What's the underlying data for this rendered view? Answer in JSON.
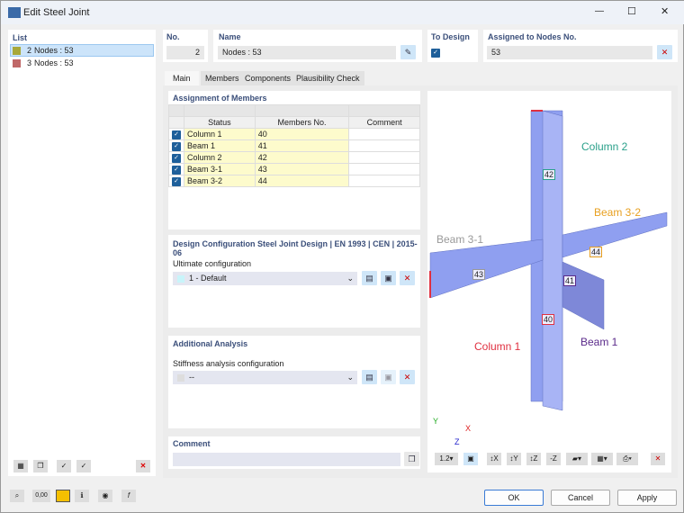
{
  "window": {
    "title": "Edit Steel Joint",
    "minimize": "—",
    "maximize": "☐",
    "close": "✕"
  },
  "list": {
    "header": "List",
    "items": [
      {
        "no": "2",
        "label": "Nodes : 53",
        "color": "#a8a83a",
        "selected": true
      },
      {
        "no": "3",
        "label": "Nodes : 53",
        "color": "#c06868",
        "selected": false
      }
    ]
  },
  "fields": {
    "no_label": "No.",
    "no_value": "2",
    "name_label": "Name",
    "name_value": "Nodes : 53",
    "to_design_label": "To Design",
    "to_design_checked": true,
    "assigned_label": "Assigned to Nodes No.",
    "assigned_value": "53"
  },
  "tabs": [
    "Main",
    "Members",
    "Components",
    "Plausibility Check"
  ],
  "assignment": {
    "header": "Assignment of Members",
    "columns": [
      "Status",
      "Members No.",
      "Comment"
    ],
    "rows": [
      {
        "status": "Column 1",
        "member": "40",
        "comment": ""
      },
      {
        "status": "Beam 1",
        "member": "41",
        "comment": ""
      },
      {
        "status": "Column 2",
        "member": "42",
        "comment": ""
      },
      {
        "status": "Beam 3-1",
        "member": "43",
        "comment": ""
      },
      {
        "status": "Beam 3-2",
        "member": "44",
        "comment": ""
      }
    ]
  },
  "design_config": {
    "header": "Design Configuration Steel Joint Design | EN 1993 | CEN | 2015-06",
    "label": "Ultimate configuration",
    "value": "1 - Default"
  },
  "additional": {
    "header": "Additional Analysis",
    "label": "Stiffness analysis configuration",
    "value": "--"
  },
  "comment": {
    "header": "Comment",
    "value": ""
  },
  "viewport": {
    "labels": {
      "column2": "Column 2",
      "beam32": "Beam 3-2",
      "beam31": "Beam 3-1",
      "column1": "Column 1",
      "beam1": "Beam 1"
    },
    "tags": {
      "c1": "40",
      "b1": "41",
      "c2": "42",
      "b31": "43",
      "b32": "44"
    },
    "axes": {
      "y": "Y",
      "x": "X",
      "z": "Z"
    },
    "colors": {
      "column2": "#2aa08a",
      "beam32": "#e8a020",
      "beam31": "#999999",
      "column1": "#e03040",
      "beam1": "#5a2a8a",
      "member": "#8f9ff0"
    }
  },
  "buttons": {
    "ok": "OK",
    "cancel": "Cancel",
    "apply": "Apply"
  },
  "status_icons": {
    "zero": "0,00"
  }
}
